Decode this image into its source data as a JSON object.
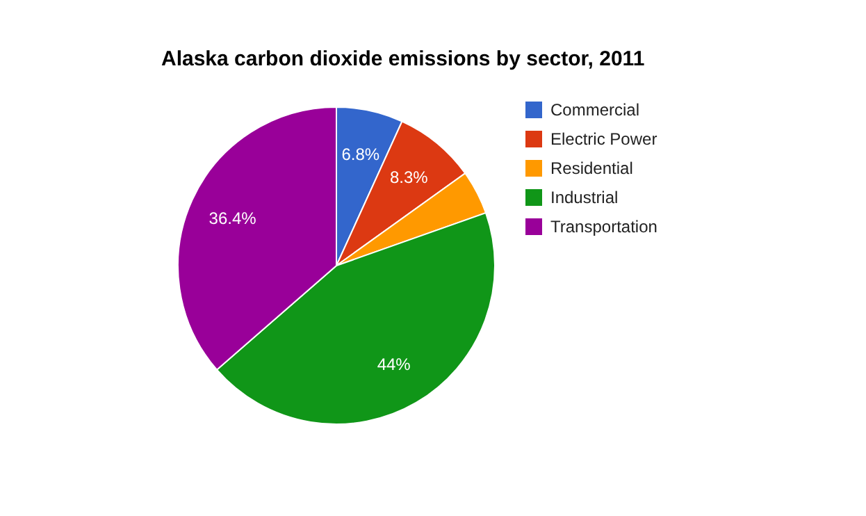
{
  "chart_data": {
    "type": "pie",
    "title": "Alaska carbon dioxide emissions by sector, 2011",
    "categories": [
      "Commercial",
      "Electric Power",
      "Residential",
      "Industrial",
      "Transportation"
    ],
    "values": [
      6.8,
      8.3,
      4.5,
      44,
      36.4
    ],
    "colors": [
      "#3366cc",
      "#dc3912",
      "#ff9900",
      "#109618",
      "#990099"
    ],
    "value_labels": [
      "6.8%",
      "8.3%",
      null,
      "44%",
      "36.4%"
    ],
    "legend": "right"
  }
}
